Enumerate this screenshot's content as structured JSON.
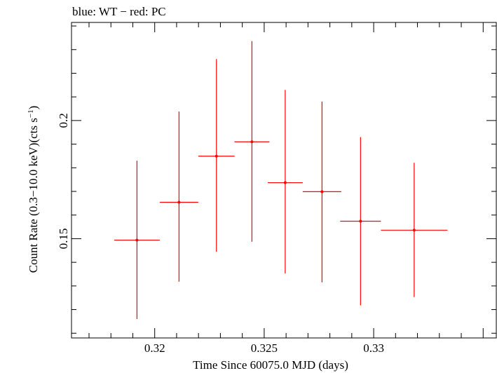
{
  "chart_data": {
    "type": "scatter",
    "title": "blue: WT − red: PC",
    "xlabel": "Time Since 60075.0 MJD (days)",
    "ylabel_main": "Count Rate (0.3−10.0 keV)(cts s",
    "ylabel_sup": "−1",
    "ylabel_end": ")",
    "xlim": [
      0.3162,
      0.3356
    ],
    "ylim": [
      0.108,
      0.2415
    ],
    "x_ticks": [
      {
        "value": 0.32,
        "label": "0.32"
      },
      {
        "value": 0.325,
        "label": "0.325"
      },
      {
        "value": 0.33,
        "label": "0.33"
      }
    ],
    "y_ticks": [
      {
        "value": 0.15,
        "label": "0.15"
      },
      {
        "value": 0.2,
        "label": "0.2"
      }
    ],
    "grid": false,
    "series": [
      {
        "color": "#ff0000",
        "points": [
          {
            "x": 0.31919,
            "y": 0.1494,
            "xerr_lo": 0.00104,
            "xerr_hi": 0.00104,
            "yerr_lo": 0.0334,
            "yerr_hi": 0.0336
          },
          {
            "x": 0.32111,
            "y": 0.1654,
            "xerr_lo": 0.00088,
            "xerr_hi": 0.00088,
            "yerr_lo": 0.0336,
            "yerr_hi": 0.0384
          },
          {
            "x": 0.32282,
            "y": 0.1849,
            "xerr_lo": 0.00083,
            "xerr_hi": 0.00083,
            "yerr_lo": 0.0404,
            "yerr_hi": 0.0411
          },
          {
            "x": 0.32444,
            "y": 0.191,
            "xerr_lo": 0.0008,
            "xerr_hi": 0.0008,
            "yerr_lo": 0.0423,
            "yerr_hi": 0.0426
          },
          {
            "x": 0.32596,
            "y": 0.1737,
            "xerr_lo": 0.0008,
            "xerr_hi": 0.0008,
            "yerr_lo": 0.0384,
            "yerr_hi": 0.0392
          },
          {
            "x": 0.32764,
            "y": 0.1699,
            "xerr_lo": 0.00088,
            "xerr_hi": 0.00088,
            "yerr_lo": 0.0384,
            "yerr_hi": 0.0381
          },
          {
            "x": 0.3294,
            "y": 0.1574,
            "xerr_lo": 0.00093,
            "xerr_hi": 0.00093,
            "yerr_lo": 0.0356,
            "yerr_hi": 0.0356
          },
          {
            "x": 0.33185,
            "y": 0.1536,
            "xerr_lo": 0.00152,
            "xerr_hi": 0.00152,
            "yerr_lo": 0.0283,
            "yerr_hi": 0.0285
          }
        ]
      }
    ]
  }
}
